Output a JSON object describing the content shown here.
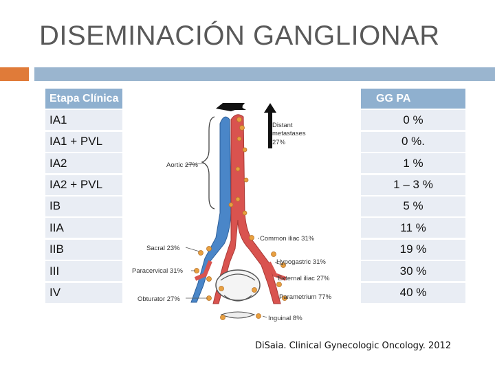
{
  "slide": {
    "title": "DISEMINACIÓN GANGLIONAR",
    "citation": "DiSaia. Clinical Gynecologic Oncology. 2012"
  },
  "table": {
    "header_left": "Etapa Clínica",
    "header_right": "GG PA",
    "rows": [
      {
        "stage": "IA1",
        "value": "0 %"
      },
      {
        "stage": "IA1 + PVL",
        "value": "0 %."
      },
      {
        "stage": "IA2",
        "value": "1  %"
      },
      {
        "stage": "IA2 + PVL",
        "value": "1 – 3 %"
      },
      {
        "stage": "IB",
        "value": "5 %"
      },
      {
        "stage": "IIA",
        "value": "11 %"
      },
      {
        "stage": "IIB",
        "value": "19 %"
      },
      {
        "stage": "III",
        "value": "30 %"
      },
      {
        "stage": "IV",
        "value": "40 %"
      }
    ]
  },
  "figure": {
    "labels": {
      "distant": "Distant",
      "metastases": "metastases",
      "distant_pct": "27%",
      "aortic": "Aortic 27%",
      "common_iliac": "Common iliac 31%",
      "sacral": "Sacral 23%",
      "hypogastric": "Hypogastric 31%",
      "paracervical": "Paracervical 31%",
      "external_iliac": "External iliac 27%",
      "parametrium": "Parametrium 77%",
      "obturator": "Obturator 27%",
      "inguinal": "Inguinal 8%"
    },
    "colors": {
      "artery": "#d9534f",
      "vein": "#4a86c8",
      "node": "#e8a040",
      "arrow": "#111111"
    }
  }
}
